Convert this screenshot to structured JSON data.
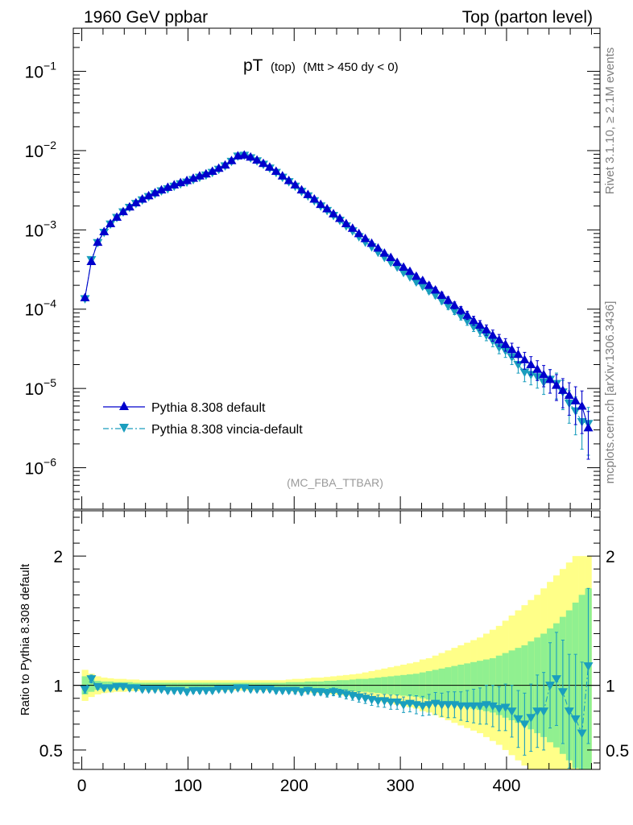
{
  "header": {
    "left": "1960 GeV ppbar",
    "right": "Top (parton level)"
  },
  "title": {
    "main": "pT",
    "sub1": "(top)",
    "sub2": "(Mtt > 450 dy < 0)"
  },
  "analysis_tag": "(MC_FBA_TTBAR)",
  "side_text": {
    "rivet": "Rivet 3.1.10, ≥ 2.1M events",
    "mcplots": "mcplots.cern.ch [arXiv:1306.3436]"
  },
  "colors": {
    "default": "#0000cc",
    "vincia": "#1a9ebe",
    "band_yellow": "#ffff88",
    "band_green": "#90f090"
  },
  "chart_data": [
    {
      "type": "line",
      "panel": "main",
      "yscale": "log",
      "xlim": [
        -8,
        488
      ],
      "ylim": [
        3e-07,
        0.35
      ],
      "yticks": [
        {
          "value": 0.1,
          "label": "10^-1"
        },
        {
          "value": 0.01,
          "label": "10^-2"
        },
        {
          "value": 0.001,
          "label": "10^-3"
        },
        {
          "value": 0.0001,
          "label": "10^-4"
        },
        {
          "value": 1e-05,
          "label": "10^-5"
        },
        {
          "value": 1e-06,
          "label": "10^-6"
        }
      ],
      "legend_position": "lower-left",
      "series": [
        {
          "name": "Pythia 8.308 default",
          "marker": "triangle-up",
          "x": [
            3,
            9,
            15,
            21,
            27,
            33,
            39,
            45,
            51,
            57,
            63,
            69,
            75,
            81,
            87,
            93,
            99,
            105,
            111,
            117,
            123,
            129,
            135,
            141,
            147,
            153,
            159,
            165,
            171,
            177,
            183,
            189,
            195,
            201,
            207,
            213,
            219,
            225,
            231,
            237,
            243,
            249,
            255,
            261,
            267,
            273,
            279,
            285,
            291,
            297,
            303,
            309,
            315,
            321,
            327,
            333,
            339,
            345,
            351,
            357,
            363,
            369,
            375,
            381,
            387,
            393,
            399,
            405,
            411,
            417,
            423,
            429,
            435,
            441,
            447,
            453,
            459,
            465,
            471,
            477
          ],
          "y": [
            0.00014,
            0.0004,
            0.0007,
            0.00095,
            0.0012,
            0.00145,
            0.0017,
            0.00195,
            0.0022,
            0.00245,
            0.0027,
            0.00295,
            0.0032,
            0.00345,
            0.0037,
            0.00395,
            0.0042,
            0.0045,
            0.0048,
            0.0051,
            0.0055,
            0.006,
            0.0066,
            0.0075,
            0.0086,
            0.0088,
            0.0083,
            0.0076,
            0.0069,
            0.0062,
            0.0055,
            0.0048,
            0.0042,
            0.0037,
            0.0032,
            0.0028,
            0.00245,
            0.0021,
            0.00185,
            0.0016,
            0.0014,
            0.0012,
            0.00105,
            0.0009,
            0.00078,
            0.00068,
            0.00059,
            0.00051,
            0.00045,
            0.00039,
            0.00034,
            0.0003,
            0.00026,
            0.00023,
            0.0002,
            0.000175,
            0.00015,
            0.00013,
            0.000112,
            9.7e-05,
            8.4e-05,
            7.2e-05,
            6.3e-05,
            5.5e-05,
            4.7e-05,
            4.1e-05,
            3.6e-05,
            3.1e-05,
            2.7e-05,
            2.3e-05,
            2e-05,
            1.75e-05,
            1.5e-05,
            1.3e-05,
            1.1e-05,
            9.5e-06,
            8.2e-06,
            7e-06,
            6e-06,
            3.2e-06
          ],
          "err_rel": [
            0.02,
            0.02,
            0.015,
            0.015,
            0.015,
            0.015,
            0.015,
            0.015,
            0.015,
            0.015,
            0.015,
            0.015,
            0.015,
            0.015,
            0.015,
            0.015,
            0.015,
            0.015,
            0.015,
            0.015,
            0.015,
            0.015,
            0.015,
            0.015,
            0.015,
            0.015,
            0.015,
            0.015,
            0.015,
            0.015,
            0.015,
            0.015,
            0.015,
            0.02,
            0.02,
            0.02,
            0.02,
            0.02,
            0.025,
            0.025,
            0.025,
            0.03,
            0.03,
            0.035,
            0.035,
            0.04,
            0.04,
            0.045,
            0.05,
            0.05,
            0.06,
            0.06,
            0.07,
            0.07,
            0.08,
            0.08,
            0.09,
            0.1,
            0.1,
            0.11,
            0.12,
            0.13,
            0.14,
            0.15,
            0.16,
            0.17,
            0.18,
            0.2,
            0.22,
            0.24,
            0.26,
            0.28,
            0.3,
            0.33,
            0.36,
            0.4,
            0.44,
            0.5,
            0.55,
            0.6
          ]
        },
        {
          "name": "Pythia 8.308 vincia-default",
          "marker": "triangle-down",
          "x": [
            3,
            9,
            15,
            21,
            27,
            33,
            39,
            45,
            51,
            57,
            63,
            69,
            75,
            81,
            87,
            93,
            99,
            105,
            111,
            117,
            123,
            129,
            135,
            141,
            147,
            153,
            159,
            165,
            171,
            177,
            183,
            189,
            195,
            201,
            207,
            213,
            219,
            225,
            231,
            237,
            243,
            249,
            255,
            261,
            267,
            273,
            279,
            285,
            291,
            297,
            303,
            309,
            315,
            321,
            327,
            333,
            339,
            345,
            351,
            357,
            363,
            369,
            375,
            381,
            387,
            393,
            399,
            405,
            411,
            417,
            423,
            429,
            435,
            441,
            447,
            453,
            459,
            465,
            471,
            477
          ],
          "y": [
            0.000135,
            0.00042,
            0.00069,
            0.00093,
            0.00118,
            0.00143,
            0.00168,
            0.00192,
            0.00215,
            0.00238,
            0.00262,
            0.00285,
            0.0031,
            0.0033,
            0.00355,
            0.0038,
            0.004,
            0.0043,
            0.0046,
            0.0049,
            0.0053,
            0.0058,
            0.0064,
            0.0073,
            0.0085,
            0.0087,
            0.0081,
            0.0074,
            0.0067,
            0.006,
            0.0053,
            0.0046,
            0.00405,
            0.00355,
            0.00305,
            0.00268,
            0.00233,
            0.002,
            0.00175,
            0.00152,
            0.00132,
            0.00112,
            0.00097,
            0.00082,
            0.0007,
            0.00061,
            0.00052,
            0.00045,
            0.00039,
            0.00034,
            0.00029,
            0.000255,
            0.00022,
            0.000195,
            0.00017,
            0.00015,
            0.000128,
            0.00011,
            9.5e-05,
            8.2e-05,
            7.1e-05,
            6e-05,
            5.3e-05,
            4.7e-05,
            4e-05,
            3.3e-05,
            3e-05,
            2.5e-05,
            2e-05,
            1.6e-05,
            1.5e-05,
            1.4e-05,
            1.2e-05,
            1.3e-05,
            1.15e-05,
            9e-06,
            6.5e-06,
            5.2e-06,
            3.8e-06,
            3.6e-06
          ],
          "err_rel": [
            0.02,
            0.02,
            0.015,
            0.015,
            0.015,
            0.015,
            0.015,
            0.015,
            0.015,
            0.015,
            0.015,
            0.015,
            0.015,
            0.015,
            0.015,
            0.015,
            0.015,
            0.015,
            0.015,
            0.015,
            0.015,
            0.015,
            0.015,
            0.015,
            0.015,
            0.015,
            0.015,
            0.015,
            0.015,
            0.015,
            0.015,
            0.015,
            0.015,
            0.02,
            0.02,
            0.02,
            0.02,
            0.02,
            0.025,
            0.025,
            0.025,
            0.03,
            0.03,
            0.035,
            0.035,
            0.04,
            0.04,
            0.045,
            0.05,
            0.05,
            0.06,
            0.06,
            0.07,
            0.07,
            0.08,
            0.08,
            0.09,
            0.1,
            0.1,
            0.11,
            0.12,
            0.13,
            0.14,
            0.15,
            0.16,
            0.17,
            0.18,
            0.2,
            0.22,
            0.24,
            0.26,
            0.28,
            0.3,
            0.33,
            0.36,
            0.4,
            0.44,
            0.5,
            0.55,
            0.6
          ]
        }
      ]
    },
    {
      "type": "line",
      "panel": "ratio",
      "ylabel": "Ratio to Pythia 8.308 default",
      "xlim": [
        -8,
        488
      ],
      "ylim": [
        0.35,
        2.35
      ],
      "xticks": [
        0,
        100,
        200,
        300,
        400
      ],
      "yticks": [
        0.5,
        1,
        2
      ],
      "reference_line": 1,
      "band_half_width": {
        "x": [
          3,
          9,
          15,
          21,
          27,
          33,
          39,
          45,
          51,
          57,
          63,
          69,
          75,
          81,
          87,
          93,
          99,
          105,
          111,
          117,
          123,
          129,
          135,
          141,
          147,
          153,
          159,
          165,
          171,
          177,
          183,
          189,
          195,
          201,
          207,
          213,
          219,
          225,
          231,
          237,
          243,
          249,
          255,
          261,
          267,
          273,
          279,
          285,
          291,
          297,
          303,
          309,
          315,
          321,
          327,
          333,
          339,
          345,
          351,
          357,
          363,
          369,
          375,
          381,
          387,
          393,
          399,
          405,
          411,
          417,
          423,
          429,
          435,
          441,
          447,
          453,
          459,
          465,
          471,
          477
        ],
        "green": [
          0.07,
          0.05,
          0.035,
          0.03,
          0.03,
          0.025,
          0.025,
          0.025,
          0.02,
          0.02,
          0.02,
          0.02,
          0.02,
          0.02,
          0.02,
          0.02,
          0.02,
          0.02,
          0.02,
          0.02,
          0.02,
          0.02,
          0.02,
          0.02,
          0.02,
          0.02,
          0.02,
          0.02,
          0.02,
          0.02,
          0.02,
          0.02,
          0.025,
          0.025,
          0.025,
          0.03,
          0.03,
          0.03,
          0.035,
          0.035,
          0.04,
          0.04,
          0.045,
          0.05,
          0.05,
          0.055,
          0.06,
          0.065,
          0.07,
          0.075,
          0.08,
          0.085,
          0.09,
          0.1,
          0.11,
          0.12,
          0.13,
          0.14,
          0.15,
          0.16,
          0.17,
          0.18,
          0.19,
          0.2,
          0.21,
          0.23,
          0.25,
          0.27,
          0.29,
          0.31,
          0.34,
          0.37,
          0.4,
          0.44,
          0.48,
          0.53,
          0.58,
          0.64,
          0.7,
          0.75
        ],
        "yellow": [
          0.12,
          0.09,
          0.07,
          0.06,
          0.055,
          0.05,
          0.05,
          0.045,
          0.045,
          0.04,
          0.04,
          0.04,
          0.04,
          0.04,
          0.04,
          0.04,
          0.04,
          0.04,
          0.04,
          0.04,
          0.04,
          0.04,
          0.04,
          0.04,
          0.04,
          0.04,
          0.04,
          0.04,
          0.04,
          0.04,
          0.04,
          0.04,
          0.045,
          0.05,
          0.05,
          0.055,
          0.06,
          0.06,
          0.065,
          0.07,
          0.075,
          0.08,
          0.085,
          0.09,
          0.1,
          0.11,
          0.12,
          0.13,
          0.14,
          0.15,
          0.16,
          0.17,
          0.18,
          0.2,
          0.21,
          0.23,
          0.25,
          0.27,
          0.29,
          0.31,
          0.33,
          0.35,
          0.37,
          0.4,
          0.43,
          0.46,
          0.5,
          0.54,
          0.58,
          0.62,
          0.66,
          0.7,
          0.75,
          0.8,
          0.85,
          0.9,
          0.95,
          1,
          1,
          1
        ]
      },
      "series": [
        {
          "name": "Pythia 8.308 vincia-default",
          "marker": "triangle-down",
          "x": [
            3,
            9,
            15,
            21,
            27,
            33,
            39,
            45,
            51,
            57,
            63,
            69,
            75,
            81,
            87,
            93,
            99,
            105,
            111,
            117,
            123,
            129,
            135,
            141,
            147,
            153,
            159,
            165,
            171,
            177,
            183,
            189,
            195,
            201,
            207,
            213,
            219,
            225,
            231,
            237,
            243,
            249,
            255,
            261,
            267,
            273,
            279,
            285,
            291,
            297,
            303,
            309,
            315,
            321,
            327,
            333,
            339,
            345,
            351,
            357,
            363,
            369,
            375,
            381,
            387,
            393,
            399,
            405,
            411,
            417,
            423,
            429,
            435,
            441,
            447,
            453,
            459,
            465,
            471,
            477
          ],
          "y": [
            0.97,
            1.05,
            0.99,
            0.98,
            0.98,
            0.99,
            0.99,
            0.98,
            0.98,
            0.97,
            0.97,
            0.97,
            0.97,
            0.96,
            0.96,
            0.96,
            0.95,
            0.96,
            0.96,
            0.96,
            0.96,
            0.97,
            0.97,
            0.97,
            0.98,
            0.98,
            0.97,
            0.97,
            0.97,
            0.97,
            0.96,
            0.96,
            0.96,
            0.96,
            0.95,
            0.96,
            0.95,
            0.95,
            0.94,
            0.95,
            0.94,
            0.93,
            0.92,
            0.91,
            0.9,
            0.89,
            0.88,
            0.88,
            0.87,
            0.87,
            0.85,
            0.86,
            0.85,
            0.84,
            0.85,
            0.86,
            0.85,
            0.85,
            0.85,
            0.84,
            0.84,
            0.84,
            0.84,
            0.85,
            0.84,
            0.82,
            0.83,
            0.8,
            0.74,
            0.7,
            0.75,
            0.8,
            0.8,
            1.0,
            1.05,
            0.95,
            0.8,
            0.74,
            0.63,
            1.15
          ],
          "err": [
            0.03,
            0.03,
            0.02,
            0.02,
            0.02,
            0.02,
            0.02,
            0.02,
            0.02,
            0.02,
            0.02,
            0.02,
            0.02,
            0.02,
            0.02,
            0.02,
            0.02,
            0.02,
            0.02,
            0.02,
            0.02,
            0.02,
            0.02,
            0.02,
            0.02,
            0.02,
            0.02,
            0.02,
            0.02,
            0.02,
            0.02,
            0.02,
            0.02,
            0.025,
            0.025,
            0.025,
            0.025,
            0.025,
            0.03,
            0.03,
            0.03,
            0.035,
            0.035,
            0.04,
            0.04,
            0.045,
            0.045,
            0.05,
            0.055,
            0.055,
            0.06,
            0.065,
            0.07,
            0.075,
            0.08,
            0.085,
            0.09,
            0.1,
            0.1,
            0.11,
            0.12,
            0.13,
            0.14,
            0.15,
            0.16,
            0.17,
            0.18,
            0.2,
            0.22,
            0.24,
            0.26,
            0.28,
            0.3,
            0.33,
            0.36,
            0.4,
            0.44,
            0.5,
            0.55,
            0.6
          ]
        }
      ]
    }
  ]
}
